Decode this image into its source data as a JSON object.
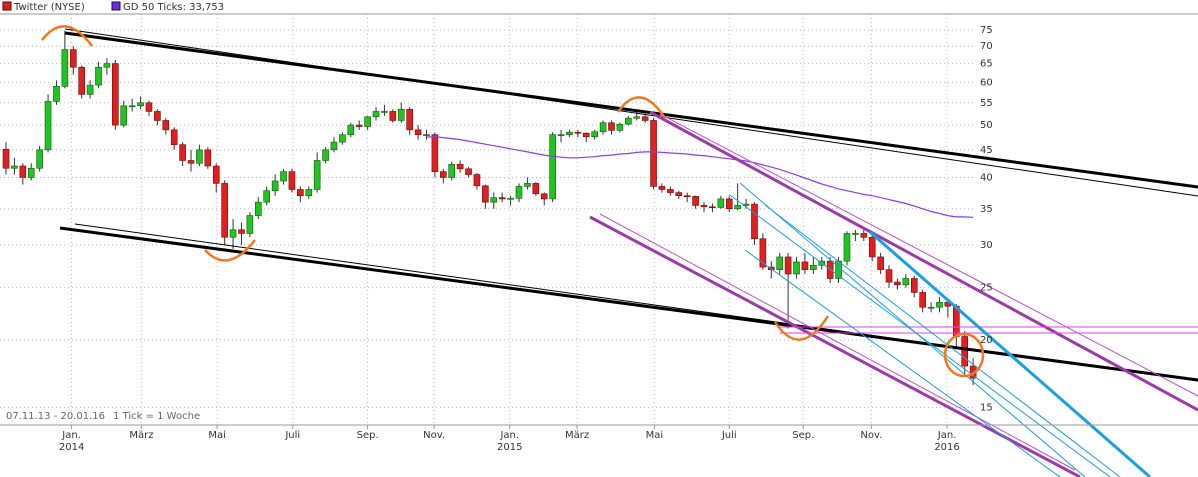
{
  "chart_data": {
    "type": "candlestick",
    "legend": [
      "Twitter (NYSE)",
      "GD 50 Ticks: 33,753"
    ],
    "range_label": "07.11.13 - 20.01.16",
    "tick_note": "1 Tick = 1 Woche",
    "up_color": "#22c322",
    "down_color": "#e02020",
    "ma_color": "#8a3cf0",
    "log_scale": true,
    "grid": true,
    "xlim": [
      -0.714,
      141.74
    ],
    "ylim": [
      13.92,
      80.3
    ],
    "yticks": [
      15,
      20,
      25,
      30,
      35,
      40,
      45,
      50,
      55,
      60,
      65,
      70,
      75
    ],
    "xticks": [
      {
        "value": 7.8,
        "label": "Jan."
      },
      {
        "value": 16.1,
        "label": "März"
      },
      {
        "value": 25.1,
        "label": "Mai"
      },
      {
        "value": 34.1,
        "label": "Juli"
      },
      {
        "value": 43.0,
        "label": "Sep."
      },
      {
        "value": 50.9,
        "label": "Nov."
      },
      {
        "value": 59.9,
        "label": "Jan."
      },
      {
        "value": 67.9,
        "label": "März"
      },
      {
        "value": 77.1,
        "label": "Mai"
      },
      {
        "value": 86.0,
        "label": "Juli"
      },
      {
        "value": 94.8,
        "label": "Sep."
      },
      {
        "value": 102.9,
        "label": "Nov."
      },
      {
        "value": 111.9,
        "label": "Jan."
      }
    ],
    "year_ticks": [
      {
        "value": 7.8,
        "label": "2014"
      },
      {
        "value": 59.9,
        "label": "2015"
      },
      {
        "value": 111.9,
        "label": "2016"
      }
    ],
    "open": [
      45.1,
      41.6,
      42.0,
      40.0,
      41.6,
      45.0,
      55.3,
      59.0,
      69.0,
      64.0,
      57.0,
      59.3,
      64.0,
      65.0,
      50.0,
      54.3,
      54.3,
      55.0,
      53.0,
      51.0,
      49.0,
      46.0,
      43.0,
      42.5,
      45.0,
      42.0,
      39.0,
      31.0,
      32.0,
      31.5,
      34.0,
      36.0,
      37.8,
      39.4,
      41.0,
      38.0,
      37.0,
      38.0,
      43.0,
      45.0,
      46.5,
      48.0,
      50.0,
      49.7,
      51.8,
      53.0,
      53.0,
      51.0,
      53.5,
      49.0,
      48.0,
      48.0,
      41.0,
      40.0,
      42.3,
      41.5,
      40.5,
      38.6,
      36.0,
      36.7,
      36.5,
      36.6,
      38.5,
      39.0,
      37.3,
      36.5,
      48.0,
      48.0,
      48.5,
      48.3,
      47.6,
      48.6,
      50.5,
      48.9,
      50.2,
      51.5,
      51.8,
      51.0,
      38.5,
      38.0,
      37.5,
      37.0,
      36.9,
      35.5,
      35.3,
      35.2,
      36.5,
      35.0,
      35.5,
      35.7,
      30.8,
      27.3,
      27.0,
      28.5,
      26.5,
      27.9,
      27.0,
      27.5,
      28.0,
      26.0,
      28.0,
      31.5,
      31.5,
      31.0,
      28.5,
      27.0,
      25.6,
      25.3,
      26.0,
      24.5,
      23.0,
      23.0,
      23.5,
      23.1,
      20.3,
      17.9
    ],
    "high": [
      46.5,
      43.5,
      42.5,
      42.5,
      45.8,
      57.0,
      60.5,
      74.7,
      70.0,
      64.5,
      60.5,
      65.5,
      66.5,
      66.0,
      55.5,
      56.0,
      56.5,
      55.5,
      53.5,
      51.5,
      49.5,
      46.5,
      45.0,
      46.0,
      45.5,
      42.5,
      39.5,
      33.5,
      33.0,
      34.5,
      36.8,
      38.5,
      40.5,
      41.5,
      41.5,
      38.5,
      38.5,
      44.5,
      45.5,
      47.5,
      48.5,
      50.5,
      51.0,
      52.0,
      54.0,
      54.5,
      53.5,
      55.0,
      54.0,
      50.0,
      49.0,
      48.5,
      41.5,
      42.8,
      43.0,
      41.8,
      40.8,
      38.8,
      37.5,
      37.5,
      37.0,
      39.0,
      40.0,
      39.2,
      37.5,
      48.5,
      49.0,
      49.0,
      49.0,
      48.5,
      49.0,
      51.0,
      51.0,
      50.5,
      52.0,
      53.0,
      52.5,
      51.5,
      39.0,
      38.5,
      37.8,
      37.5,
      37.0,
      36.0,
      35.8,
      37.0,
      37.0,
      39.0,
      36.5,
      36.0,
      31.5,
      28.0,
      29.0,
      29.0,
      28.5,
      29.0,
      28.5,
      28.5,
      28.5,
      28.5,
      31.8,
      32.0,
      32.0,
      31.5,
      29.0,
      27.5,
      26.0,
      26.5,
      26.3,
      24.8,
      23.5,
      24.0,
      23.8,
      23.3,
      20.8,
      18.5
    ],
    "low": [
      40.5,
      40.5,
      38.8,
      39.5,
      41.0,
      44.5,
      54.5,
      58.5,
      62.0,
      56.0,
      56.0,
      58.5,
      62.0,
      49.0,
      49.5,
      53.0,
      53.5,
      52.0,
      50.0,
      48.0,
      45.0,
      42.0,
      41.0,
      42.0,
      41.5,
      37.5,
      30.0,
      29.5,
      30.0,
      31.0,
      33.5,
      35.5,
      37.0,
      38.8,
      37.5,
      36.0,
      36.5,
      37.5,
      42.5,
      44.5,
      46.0,
      47.5,
      49.0,
      49.0,
      51.0,
      52.0,
      50.5,
      50.5,
      48.0,
      47.0,
      47.0,
      40.0,
      39.0,
      39.5,
      40.8,
      40.0,
      38.0,
      35.0,
      35.0,
      36.0,
      35.5,
      36.0,
      38.0,
      37.0,
      35.5,
      36.0,
      46.5,
      47.5,
      47.5,
      46.5,
      47.0,
      48.0,
      48.0,
      48.5,
      50.0,
      51.0,
      50.5,
      38.0,
      37.5,
      37.0,
      36.5,
      36.0,
      35.0,
      34.5,
      34.5,
      35.0,
      34.5,
      34.8,
      35.0,
      30.0,
      27.0,
      26.0,
      26.5,
      21.0,
      26.0,
      26.5,
      26.5,
      27.0,
      25.5,
      25.5,
      27.5,
      30.5,
      30.5,
      28.0,
      26.5,
      25.0,
      24.8,
      25.0,
      24.0,
      22.5,
      22.5,
      22.5,
      22.0,
      19.5,
      17.2,
      16.5
    ],
    "close": [
      41.6,
      42.0,
      40.0,
      41.6,
      45.0,
      55.3,
      59.0,
      69.0,
      64.0,
      57.0,
      59.3,
      64.0,
      65.0,
      50.0,
      54.3,
      54.3,
      55.0,
      53.0,
      51.0,
      49.0,
      46.0,
      43.0,
      42.5,
      45.0,
      42.0,
      39.0,
      31.0,
      32.0,
      31.5,
      34.0,
      36.0,
      37.8,
      39.4,
      41.0,
      38.0,
      37.0,
      38.0,
      43.0,
      45.0,
      46.5,
      48.0,
      50.0,
      49.7,
      51.8,
      53.0,
      53.0,
      51.0,
      53.5,
      49.0,
      48.0,
      48.0,
      41.0,
      40.0,
      42.3,
      41.5,
      40.5,
      38.6,
      36.0,
      36.7,
      36.5,
      36.6,
      38.5,
      39.0,
      37.3,
      36.5,
      48.0,
      48.0,
      48.5,
      48.3,
      47.6,
      48.6,
      50.5,
      48.9,
      50.2,
      51.5,
      51.8,
      51.0,
      38.5,
      38.0,
      37.5,
      37.0,
      36.9,
      35.5,
      35.3,
      35.2,
      36.5,
      35.0,
      35.5,
      35.7,
      30.8,
      27.3,
      27.0,
      28.5,
      26.5,
      27.9,
      27.0,
      27.5,
      28.0,
      26.0,
      28.0,
      31.5,
      31.5,
      31.0,
      28.5,
      27.0,
      25.6,
      25.3,
      26.0,
      24.5,
      23.0,
      23.0,
      23.5,
      23.1,
      20.3,
      17.9,
      17.0
    ],
    "ma": [
      null,
      null,
      null,
      null,
      null,
      null,
      null,
      null,
      null,
      null,
      null,
      null,
      null,
      null,
      null,
      null,
      null,
      null,
      null,
      null,
      null,
      null,
      null,
      null,
      null,
      null,
      null,
      null,
      null,
      null,
      null,
      null,
      null,
      null,
      null,
      null,
      null,
      null,
      null,
      null,
      null,
      null,
      null,
      null,
      null,
      null,
      null,
      null,
      null,
      null,
      47.5,
      47.6,
      47.4,
      47.2,
      47.0,
      46.7,
      46.4,
      46.1,
      45.8,
      45.5,
      45.2,
      44.9,
      44.6,
      44.3,
      44.0,
      43.8,
      43.6,
      43.5,
      43.5,
      43.6,
      43.7,
      43.9,
      44.0,
      44.2,
      44.3,
      44.5,
      44.6,
      44.6,
      44.5,
      44.4,
      44.3,
      44.2,
      44.0,
      43.9,
      43.7,
      43.5,
      43.3,
      43.1,
      42.9,
      42.6,
      42.2,
      41.8,
      41.4,
      40.9,
      40.4,
      39.9,
      39.4,
      38.9,
      38.5,
      38.1,
      37.8,
      37.5,
      37.2,
      37.0,
      36.7,
      36.4,
      36.1,
      35.8,
      35.4,
      35.0,
      34.6,
      34.3,
      34.0,
      33.8,
      33.8,
      33.753
    ]
  }
}
